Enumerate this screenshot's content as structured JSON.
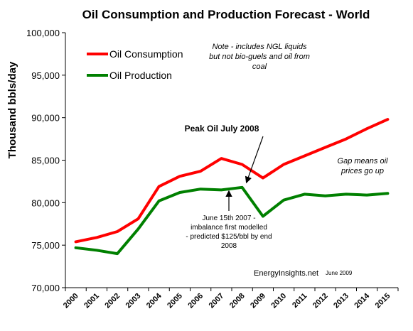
{
  "chart_data": {
    "type": "line",
    "title": "Oil Consumption and Production Forecast - World",
    "ylabel": "Thousand bbls/day",
    "xlabel": "",
    "ylim": [
      70000,
      100000
    ],
    "yticks": [
      "70,000",
      "75,000",
      "80,000",
      "85,000",
      "90,000",
      "95,000",
      "100,000"
    ],
    "categories": [
      "2000",
      "2001",
      "2002",
      "2003",
      "2004",
      "2005",
      "2006",
      "2007",
      "2008",
      "2009",
      "2010",
      "2011",
      "2012",
      "2013",
      "2014",
      "2015"
    ],
    "series": [
      {
        "name": "Oil Consumption",
        "color": "#ff0000",
        "values": [
          75400,
          75900,
          76600,
          78100,
          81900,
          83100,
          83700,
          85200,
          84500,
          82900,
          84500,
          85500,
          86500,
          87500,
          88700,
          89800
        ]
      },
      {
        "name": "Oil Production",
        "color": "#008000",
        "values": [
          74700,
          74400,
          74000,
          76900,
          80200,
          81200,
          81600,
          81500,
          81800,
          78400,
          80300,
          81000,
          80800,
          81000,
          80900,
          81100
        ]
      }
    ],
    "legend_position": "top-left",
    "grid": false,
    "annotations": {
      "note_lines": [
        "Note - includes NGL liquids",
        "but not bio-guels and  oil from",
        "coal"
      ],
      "peak": "Peak Oil July 2008",
      "gap_lines": [
        "Gap means oil",
        "prices go up"
      ],
      "june_lines": [
        "June 15th 2007 -",
        "imbalance first modelled",
        "- predicted $125/bbl by end",
        "2008"
      ],
      "source": "EnergyInsights.net",
      "source_date": "June 2009"
    }
  }
}
